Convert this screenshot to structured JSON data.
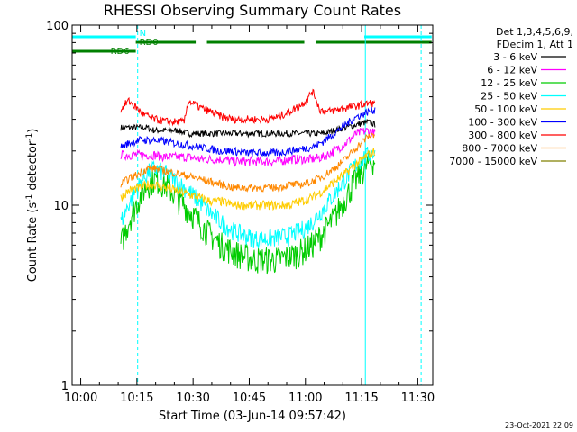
{
  "chart_data": {
    "type": "line",
    "title": "RHESSI Observing Summary Count Rates",
    "xlabel": "Start Time (03-Jun-14 09:57:42)",
    "ylabel_main": "Count Rate (s",
    "ylabel_sup1": "-1",
    "ylabel_mid": " detector",
    "ylabel_sup2": "-1",
    "ylabel_end": ")",
    "timestamp": "23-Oct-2021 22:09",
    "x_unit": "minutes since 09:57:42",
    "xlim": [
      0,
      96.3
    ],
    "ylim": [
      1,
      100
    ],
    "y_scale": "log",
    "x_ticks": [
      {
        "label": "10:00",
        "value": 2.3
      },
      {
        "label": "10:15",
        "value": 17.3
      },
      {
        "label": "10:30",
        "value": 32.3
      },
      {
        "label": "10:45",
        "value": 47.3
      },
      {
        "label": "11:00",
        "value": 62.3
      },
      {
        "label": "11:15",
        "value": 77.3
      },
      {
        "label": "11:30",
        "value": 92.3
      }
    ],
    "y_ticks": [
      {
        "label": "1",
        "value": 1
      },
      {
        "label": "10",
        "value": 10
      },
      {
        "label": "100",
        "value": 100
      }
    ],
    "legend": {
      "position": "top-right",
      "header1": "Det 1,3,4,5,6,9,",
      "header2": "FDecim 1, Att 1"
    },
    "series": [
      {
        "name": "3 - 6 keV",
        "color": "#000000",
        "x": [
          13,
          15,
          18,
          20,
          22,
          25,
          28,
          31,
          34,
          37,
          40,
          43,
          46,
          49,
          52,
          55,
          58,
          61,
          64,
          67,
          70,
          73,
          76,
          79,
          81
        ],
        "y": [
          27,
          27,
          27,
          27,
          26,
          26,
          26,
          25,
          25,
          25,
          25,
          25,
          25,
          25,
          25,
          25,
          25,
          25,
          25,
          25,
          26,
          27,
          28,
          29,
          28
        ]
      },
      {
        "name": "6 - 12 keV",
        "color": "#ff00ff",
        "x": [
          13,
          15,
          18,
          20,
          22,
          25,
          28,
          31,
          34,
          37,
          40,
          43,
          46,
          49,
          52,
          55,
          58,
          61,
          64,
          67,
          70,
          73,
          76,
          79,
          81
        ],
        "y": [
          19,
          19,
          19,
          19,
          19,
          18.5,
          18.5,
          18.5,
          18,
          18,
          18,
          17.5,
          17.5,
          17.5,
          17.5,
          17.5,
          18,
          18,
          18,
          18.5,
          20,
          22,
          25,
          26,
          25
        ]
      },
      {
        "name": "12 - 25 keV",
        "color": "#00cc00",
        "x": [
          13,
          15,
          18,
          20,
          22,
          25,
          28,
          31,
          34,
          37,
          40,
          43,
          46,
          49,
          52,
          55,
          58,
          61,
          64,
          67,
          70,
          73,
          76,
          79,
          81
        ],
        "y": [
          6,
          8,
          11,
          13,
          14,
          13,
          11,
          9.5,
          8,
          6.8,
          6,
          5.5,
          5.2,
          5,
          5,
          5,
          5.2,
          5.5,
          6,
          7,
          8.5,
          11,
          14,
          17,
          18
        ]
      },
      {
        "name": "25 - 50 keV",
        "color": "#00ffff",
        "x": [
          13,
          15,
          18,
          20,
          22,
          25,
          28,
          31,
          34,
          37,
          40,
          43,
          46,
          49,
          52,
          55,
          58,
          61,
          64,
          67,
          70,
          73,
          76,
          79,
          81
        ],
        "y": [
          8,
          10,
          13,
          15,
          16,
          15,
          13.5,
          12,
          10.5,
          9,
          8,
          7.2,
          6.8,
          6.5,
          6.5,
          6.6,
          6.8,
          7.2,
          8,
          9.5,
          11.5,
          14,
          17,
          19,
          20
        ]
      },
      {
        "name": "50 - 100 keV",
        "color": "#ffcc00",
        "x": [
          13,
          15,
          18,
          20,
          22,
          25,
          28,
          31,
          34,
          37,
          40,
          43,
          46,
          49,
          52,
          55,
          58,
          61,
          64,
          67,
          70,
          73,
          76,
          79,
          81
        ],
        "y": [
          11,
          12,
          12.5,
          13,
          13,
          12.5,
          12,
          11.5,
          11,
          10.5,
          10.5,
          10,
          10,
          10,
          10,
          10,
          10,
          10.5,
          11,
          12,
          13.5,
          15,
          17,
          19,
          20
        ]
      },
      {
        "name": "100 - 300 keV",
        "color": "#0000ff",
        "x": [
          13,
          15,
          18,
          20,
          22,
          25,
          28,
          31,
          34,
          37,
          40,
          43,
          46,
          49,
          52,
          55,
          58,
          61,
          64,
          67,
          70,
          73,
          76,
          79,
          81
        ],
        "y": [
          21,
          22,
          23,
          23,
          23,
          22.5,
          22,
          21.5,
          21,
          20.5,
          20,
          20,
          19.5,
          19.5,
          19.5,
          19.5,
          20,
          20.5,
          21,
          22.5,
          25,
          28,
          31,
          33,
          34
        ]
      },
      {
        "name": "300 - 800 keV",
        "color": "#ff0000",
        "x": [
          13,
          15,
          19,
          22,
          26,
          29,
          30,
          31,
          32,
          34,
          37,
          40,
          43,
          46,
          49,
          52,
          55,
          58,
          61,
          63,
          64,
          65,
          66,
          68,
          71,
          74,
          77,
          80,
          81
        ],
        "y": [
          34,
          38,
          32,
          30,
          29,
          29,
          29,
          38,
          37,
          35,
          33,
          31,
          30,
          30,
          30,
          30,
          31,
          33,
          36,
          39,
          43,
          40,
          34,
          33,
          34,
          35,
          36,
          37,
          36
        ]
      },
      {
        "name": "800 - 7000 keV",
        "color": "#ff8800",
        "x": [
          13,
          15,
          18,
          20,
          22,
          25,
          28,
          31,
          34,
          37,
          40,
          43,
          46,
          49,
          52,
          55,
          58,
          61,
          64,
          67,
          70,
          73,
          76,
          79,
          81
        ],
        "y": [
          13,
          14,
          15,
          16,
          16,
          15.5,
          15,
          14.5,
          14,
          13.5,
          13,
          12.5,
          12.5,
          12.5,
          12.5,
          12.5,
          13,
          13,
          13.5,
          14.5,
          16,
          18,
          21,
          24,
          25
        ]
      },
      {
        "name": "7000 - 15000 keV",
        "color": "#808000",
        "x": [],
        "y": []
      }
    ],
    "flags": [
      {
        "name": "N",
        "color": "#00ffff",
        "segments": [
          [
            0,
            17
          ],
          [
            78,
            96
          ]
        ]
      },
      {
        "name": "RD0",
        "color": "#008000",
        "segments": [
          [
            17,
            33
          ],
          [
            36,
            62
          ],
          [
            65,
            96
          ]
        ]
      },
      {
        "name": "RD6",
        "color": "#008000",
        "segments": [
          [
            0,
            17
          ]
        ]
      }
    ],
    "vlines": [
      {
        "x": 0,
        "color": "#00ffff",
        "style": "solid"
      },
      {
        "x": 17.5,
        "color": "#00ffff",
        "style": "dashed"
      },
      {
        "x": 78.3,
        "color": "#00ffff",
        "style": "solid"
      },
      {
        "x": 93.2,
        "color": "#00ffff",
        "style": "dashed"
      }
    ]
  }
}
